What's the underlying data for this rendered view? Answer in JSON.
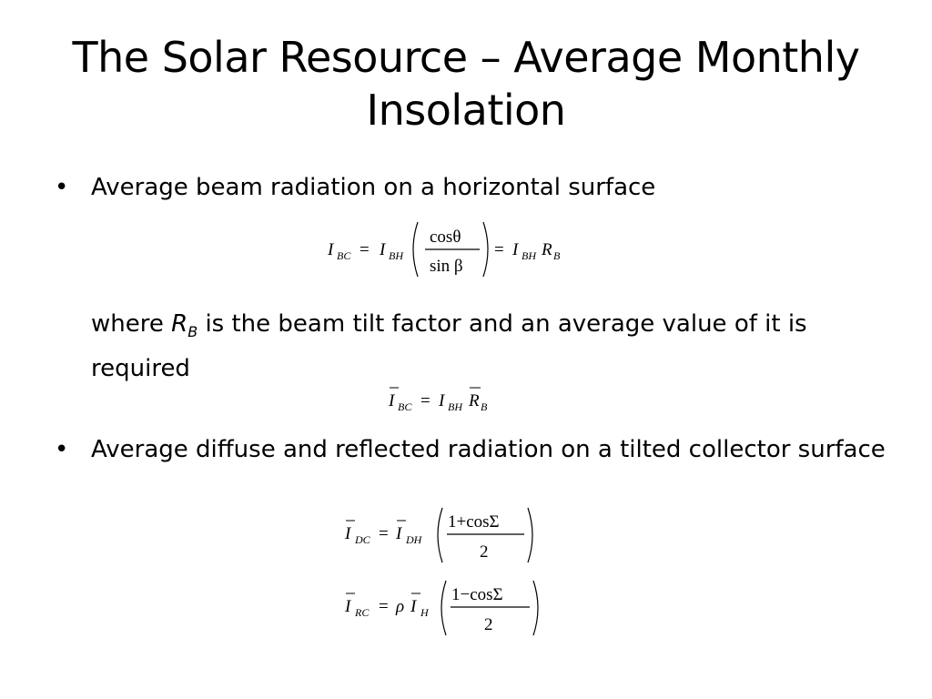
{
  "slide": {
    "title": "The Solar Resource – Average Monthly Insolation",
    "bullets": [
      {
        "marker": "•",
        "text": "Average beam radiation on a horizontal surface"
      },
      {
        "marker": "•",
        "text": "Average diffuse and reflected radiation on a tilted collector surface"
      }
    ],
    "where_note": {
      "prefix": "where ",
      "symbol": "R",
      "subscript": "B",
      "suffix": " is the beam tilt factor and an average value of it is required"
    },
    "equations": {
      "beam_tilted": {
        "I": "I",
        "sub_bc": "BC",
        "sub_bh": "BH",
        "num": "cosθ",
        "den": "sin β",
        "R": "R",
        "sub_b": "B",
        "eq": "="
      },
      "beam_avg": {
        "I": "I",
        "sub_bc": "BC",
        "sub_bh": "BH",
        "R": "R",
        "sub_b": "B",
        "eq": "="
      },
      "diffuse_avg": {
        "I": "I",
        "sub_dc": "DC",
        "sub_dh": "DH",
        "num": "1+cosΣ",
        "den": "2",
        "eq": "="
      },
      "reflected_avg": {
        "I": "I",
        "sub_rc": "RC",
        "rho": "ρ",
        "sub_h": "H",
        "num": "1−cosΣ",
        "den": "2",
        "eq": "="
      }
    }
  }
}
